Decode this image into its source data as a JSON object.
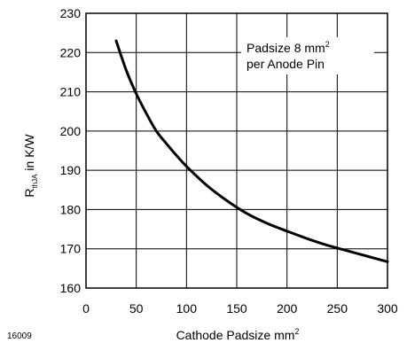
{
  "figure_id": "16009",
  "chart_data": {
    "type": "line",
    "title": "",
    "xlabel": "Cathode Padsize mm",
    "xlabel_superscript": "2",
    "ylabel": {
      "main": "R",
      "subscript": "thJA",
      "rest": " in K/W"
    },
    "xlim": [
      0,
      300
    ],
    "ylim": [
      160,
      230
    ],
    "xticks": [
      0,
      50,
      100,
      150,
      200,
      250,
      300
    ],
    "yticks": [
      160,
      170,
      180,
      190,
      200,
      210,
      220,
      230
    ],
    "grid": true,
    "legend": "none",
    "annotation": {
      "line1": "Padsize 8 mm",
      "line1_superscript": "2",
      "line2": "per Anode Pin",
      "placement": "top-right"
    },
    "series": [
      {
        "x": [
          30,
          40,
          50,
          60,
          70,
          80,
          90,
          100,
          120,
          140,
          160,
          180,
          200,
          220,
          240,
          260,
          280,
          300
        ],
        "y": [
          223,
          215.5,
          209.5,
          204.5,
          200,
          196.8,
          193.8,
          191,
          186.2,
          182.3,
          179,
          176.5,
          174.5,
          172.6,
          170.9,
          169.5,
          168.1,
          166.7
        ],
        "color": "#000000"
      }
    ]
  }
}
